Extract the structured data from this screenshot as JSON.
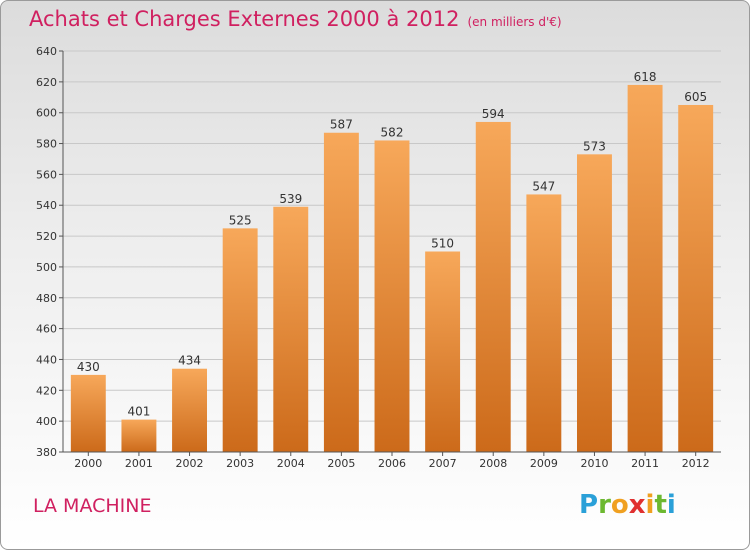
{
  "title": "Achats et Charges Externes 2000 à 2012",
  "unit": "(en milliers d'€)",
  "commune": "LA MACHINE",
  "logo": {
    "letters": [
      {
        "char": "P",
        "color": "#2aa0d8"
      },
      {
        "char": "r",
        "color": "#6cb830"
      },
      {
        "char": "o",
        "color": "#f0a020"
      },
      {
        "char": "x",
        "color": "#e03030"
      },
      {
        "char": "i",
        "color": "#f0a020"
      },
      {
        "char": "t",
        "color": "#6cb830"
      },
      {
        "char": "i",
        "color": "#2aa0d8"
      }
    ]
  },
  "chart_data": {
    "type": "bar",
    "title": "Achats et Charges Externes 2000 à 2012",
    "subtitle": "(en milliers d'€)",
    "categories": [
      "2000",
      "2001",
      "2002",
      "2003",
      "2004",
      "2005",
      "2006",
      "2007",
      "2008",
      "2009",
      "2010",
      "2011",
      "2012"
    ],
    "values": [
      430,
      401,
      434,
      525,
      539,
      587,
      582,
      510,
      594,
      547,
      573,
      618,
      605
    ],
    "ylim": [
      380,
      640
    ],
    "yticks": [
      380,
      400,
      420,
      440,
      460,
      480,
      500,
      520,
      540,
      560,
      580,
      600,
      620,
      640
    ],
    "grid": true,
    "bar_color_top": "#f7a85a",
    "bar_color_bottom": "#cc6a1a",
    "text_color": "#d02060"
  }
}
